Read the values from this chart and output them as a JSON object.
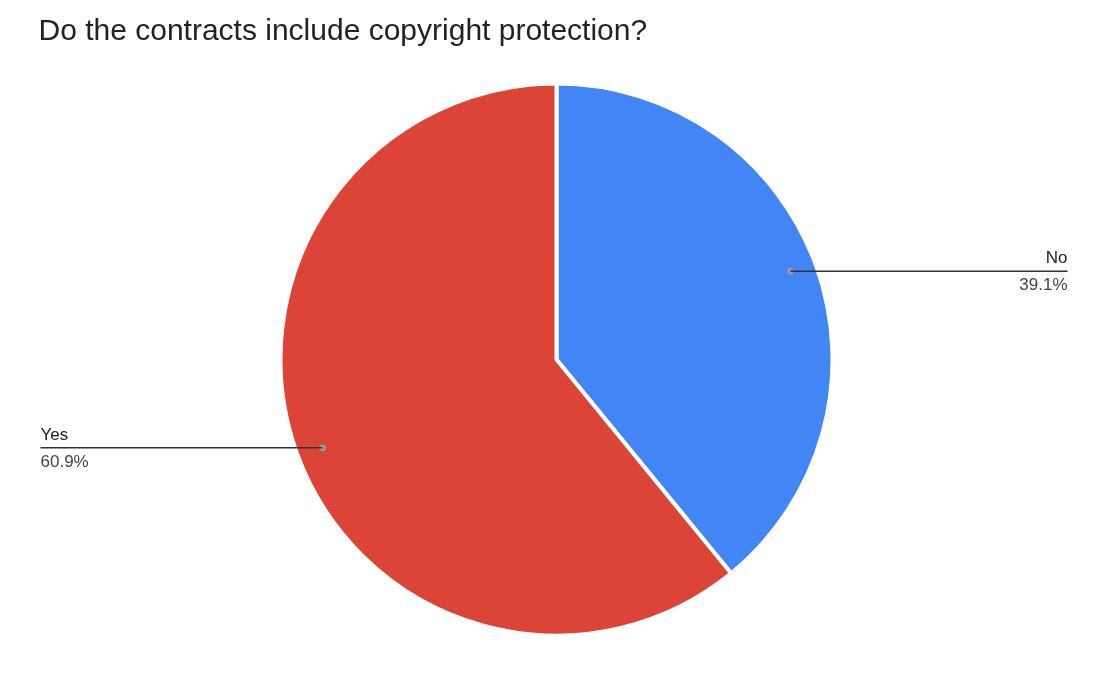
{
  "chart_data": {
    "type": "pie",
    "title": "Do the contracts include copyright protection?",
    "categories": [
      "No",
      "Yes"
    ],
    "values": [
      39.1,
      60.9
    ],
    "value_labels": [
      "39.1%",
      "60.9%"
    ],
    "colors": [
      "#4285f4",
      "#db4437"
    ]
  }
}
